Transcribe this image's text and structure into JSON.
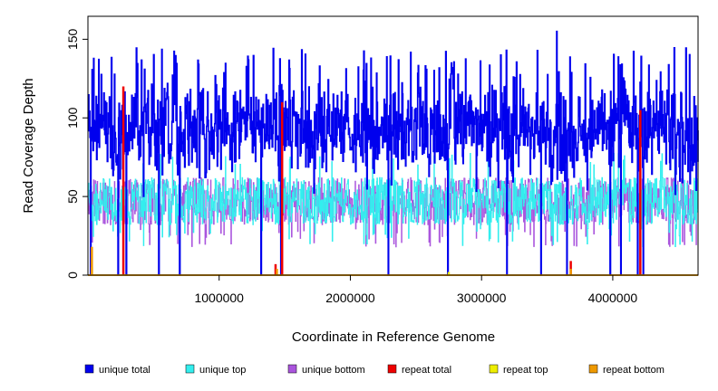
{
  "chart_data": {
    "type": "line",
    "title": "",
    "xlabel": "Coordinate in Reference Genome",
    "ylabel": "Read Coverage Depth",
    "xlim": [
      0,
      4650000
    ],
    "ylim": [
      0,
      160
    ],
    "x_ticks": [
      1000000,
      2000000,
      3000000,
      4000000
    ],
    "x_tick_labels": [
      "1000000",
      "2000000",
      "3000000",
      "4000000"
    ],
    "y_ticks": [
      0,
      50,
      100,
      150
    ],
    "y_tick_labels": [
      "0",
      "50",
      "100",
      "150"
    ],
    "grid": false,
    "legend_position": "bottom",
    "series": [
      {
        "name": "unique total",
        "color": "#0000ee",
        "typical_range": [
          60,
          140
        ]
      },
      {
        "name": "unique top",
        "color": "#33eeee",
        "typical_range": [
          20,
          75
        ]
      },
      {
        "name": "unique bottom",
        "color": "#aa55dd",
        "typical_range": [
          20,
          75
        ]
      },
      {
        "name": "repeat total",
        "color": "#ee0000",
        "peaks": [
          [
            270000,
            120
          ],
          [
            1430000,
            7
          ],
          [
            1480000,
            110
          ],
          [
            3680000,
            9
          ],
          [
            4210000,
            105
          ]
        ]
      },
      {
        "name": "repeat top",
        "color": "#eeee00",
        "peaks": [
          [
            30000,
            5
          ],
          [
            2750000,
            2
          ]
        ]
      },
      {
        "name": "repeat bottom",
        "color": "#ee9900",
        "peaks": [
          [
            30000,
            18
          ],
          [
            1440000,
            4
          ],
          [
            3680000,
            4
          ]
        ]
      }
    ],
    "coverage_dropouts": [
      20000,
      230000,
      290000,
      540000,
      700000,
      1320000,
      1470000,
      2290000,
      2740000,
      3190000,
      3450000,
      3650000,
      3980000,
      4060000,
      4190000,
      4230000
    ]
  }
}
